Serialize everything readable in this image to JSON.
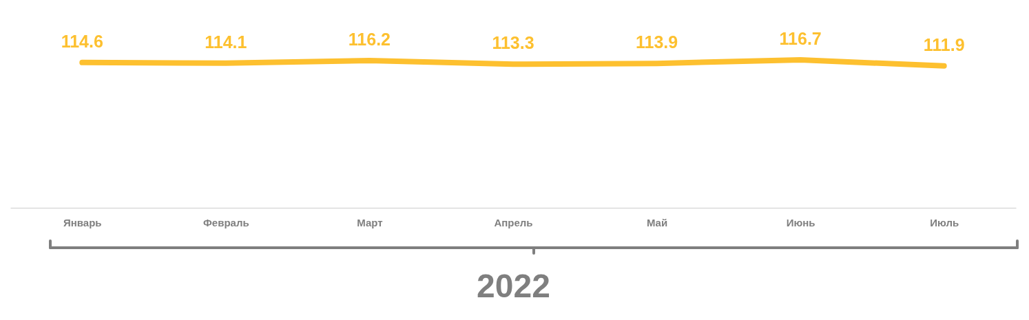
{
  "chart_data": {
    "type": "line",
    "xlabel": "2022",
    "categories": [
      "Январь",
      "Февраль",
      "Март",
      "Апрель",
      "Май",
      "Июнь",
      "Июль"
    ],
    "series": [
      {
        "color": "#fdc02f",
        "values": [
          114.6,
          114.1,
          116.2,
          113.3,
          113.9,
          116.7,
          111.9
        ]
      }
    ],
    "tick_labels": "x",
    "data_labels": true,
    "grid": false,
    "legend": false,
    "marker": "none",
    "line_style": "solid"
  }
}
